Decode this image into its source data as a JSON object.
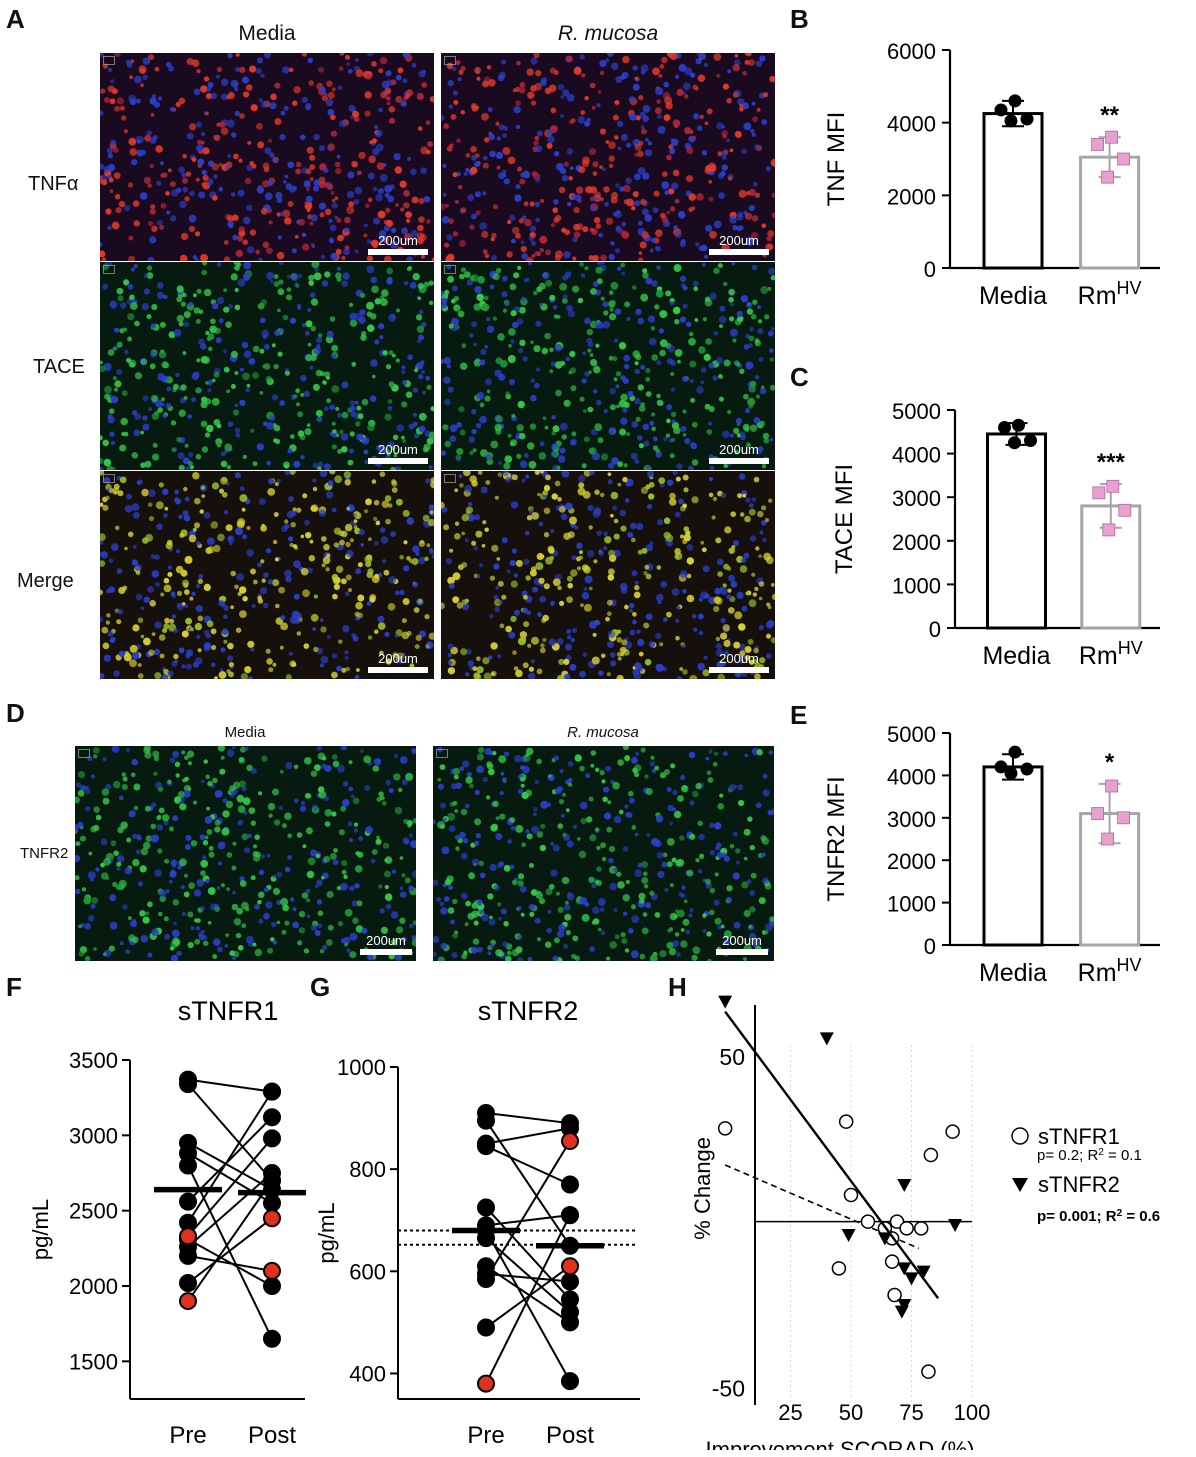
{
  "panels": {
    "A": "A",
    "B": "B",
    "C": "C",
    "D": "D",
    "E": "E",
    "F": "F",
    "G": "G",
    "H": "H"
  },
  "micro_A": {
    "col_media": "Media",
    "col_rm": "R. mucosa",
    "rows": [
      "TNFα",
      "TACE",
      "Merge"
    ],
    "scale_label": "200um"
  },
  "micro_D": {
    "col_media": "Media",
    "col_rm": "R. mucosa",
    "row": "TNFR2",
    "scale_label": "200um"
  },
  "colors": {
    "media_bar": "#000000",
    "rm_bar": "#a6a6a6",
    "rm_marker": "#e8a0cf",
    "red_point": "#e0301e"
  },
  "chart_data": [
    {
      "id": "B",
      "type": "bar",
      "ylabel": "TNF MFI",
      "categories": [
        "Media",
        "Rm"
      ],
      "cat_sup": [
        "",
        "HV"
      ],
      "values": [
        4250,
        3050
      ],
      "errors": [
        350,
        550
      ],
      "points": [
        [
          4600,
          4350,
          4100,
          4050
        ],
        [
          3600,
          3400,
          3000,
          2500
        ]
      ],
      "sig": [
        "",
        "**"
      ],
      "yticks": [
        0,
        2000,
        4000,
        6000
      ],
      "ylim": [
        0,
        6000
      ]
    },
    {
      "id": "C",
      "type": "bar",
      "ylabel": "TACE MFI",
      "categories": [
        "Media",
        "Rm"
      ],
      "cat_sup": [
        "",
        "HV"
      ],
      "values": [
        4450,
        2800
      ],
      "errors": [
        250,
        500
      ],
      "points": [
        [
          4650,
          4600,
          4300,
          4250
        ],
        [
          3250,
          3100,
          2700,
          2250
        ]
      ],
      "sig": [
        "",
        "***"
      ],
      "yticks": [
        0,
        1000,
        2000,
        3000,
        4000,
        5000
      ],
      "ylim": [
        0,
        5000
      ]
    },
    {
      "id": "E",
      "type": "bar",
      "ylabel": "TNFR2 MFI",
      "categories": [
        "Media",
        "Rm"
      ],
      "cat_sup": [
        "",
        "HV"
      ],
      "values": [
        4200,
        3100
      ],
      "errors": [
        300,
        700
      ],
      "points": [
        [
          4550,
          4200,
          4150,
          4050
        ],
        [
          3750,
          3100,
          3000,
          2500
        ]
      ],
      "sig": [
        "",
        "*"
      ],
      "yticks": [
        0,
        1000,
        2000,
        3000,
        4000,
        5000
      ],
      "ylim": [
        0,
        5000
      ]
    },
    {
      "id": "F",
      "type": "line",
      "title": "sTNFR1",
      "ylabel": "pg/mL",
      "categories": [
        "Pre",
        "Post"
      ],
      "yticks": [
        1500,
        2000,
        2500,
        3000,
        3500
      ],
      "ylim": [
        1250,
        3500
      ],
      "median": [
        2640,
        2620
      ],
      "pairs": [
        [
          3370,
          3290,
          0,
          0
        ],
        [
          3340,
          2700,
          0,
          0
        ],
        [
          2950,
          2640,
          0,
          0
        ],
        [
          2880,
          2550,
          0,
          0
        ],
        [
          2800,
          1650,
          0,
          0
        ],
        [
          2560,
          3120,
          0,
          0
        ],
        [
          2420,
          3290,
          0,
          0
        ],
        [
          2310,
          2000,
          0,
          0
        ],
        [
          2260,
          2750,
          0,
          0
        ],
        [
          2200,
          2100,
          0,
          1
        ],
        [
          2020,
          2450,
          0,
          1
        ],
        [
          1900,
          2700,
          1,
          0
        ],
        [
          2330,
          2980,
          1,
          0
        ]
      ]
    },
    {
      "id": "G",
      "type": "line",
      "title": "sTNFR2",
      "ylabel": "pg/mL",
      "categories": [
        "Pre",
        "Post"
      ],
      "yticks": [
        400,
        600,
        800,
        1000
      ],
      "ylim": [
        350,
        1000
      ],
      "median": [
        680,
        650
      ],
      "dotted": [
        680,
        652
      ],
      "pairs": [
        [
          910,
          890,
          0,
          0
        ],
        [
          895,
          650,
          0,
          0
        ],
        [
          850,
          880,
          0,
          0
        ],
        [
          845,
          770,
          0,
          0
        ],
        [
          725,
          545,
          0,
          0
        ],
        [
          690,
          710,
          0,
          0
        ],
        [
          680,
          385,
          0,
          0
        ],
        [
          665,
          520,
          0,
          0
        ],
        [
          610,
          500,
          0,
          0
        ],
        [
          595,
          580,
          0,
          0
        ],
        [
          585,
          855,
          0,
          1
        ],
        [
          490,
          610,
          0,
          1
        ],
        [
          380,
          710,
          1,
          0
        ]
      ]
    },
    {
      "id": "H",
      "type": "scatter",
      "xlabel": "Improvement SCORAD (%)",
      "ylabel": "% Change",
      "xticks": [
        25,
        50,
        75,
        100
      ],
      "xlim": [
        0,
        100
      ],
      "yticks": [
        -50,
        50
      ],
      "ylim": [
        -55,
        65
      ],
      "series": [
        {
          "name": "sTNFR1",
          "marker": "circle",
          "stats": "p= 0.2; R",
          "stats_sup": "2",
          "stats_tail": " = 0.1",
          "points": [
            [
              -2,
              28
            ],
            [
              45,
              -14
            ],
            [
              50,
              8
            ],
            [
              48,
              30
            ],
            [
              57,
              0
            ],
            [
              64,
              -2
            ],
            [
              67,
              -5
            ],
            [
              69,
              0
            ],
            [
              67,
              -12
            ],
            [
              68,
              -22
            ],
            [
              73,
              -2
            ],
            [
              79,
              -2
            ],
            [
              83,
              20
            ],
            [
              92,
              27
            ],
            [
              82,
              -45
            ]
          ],
          "trend": [
            [
              -2,
              17
            ],
            [
              78,
              -8
            ]
          ],
          "dashed": true
        },
        {
          "name": "sTNFR2",
          "marker": "triangle",
          "stats": "p= 0.001; R",
          "stats_sup": "2",
          "stats_tail": " = 0.6",
          "points": [
            [
              -2,
              66
            ],
            [
              40,
              55
            ],
            [
              49,
              -4
            ],
            [
              64,
              -5
            ],
            [
              72,
              11
            ],
            [
              72,
              -14
            ],
            [
              75,
              -17
            ],
            [
              80,
              -15
            ],
            [
              72,
              -25
            ],
            [
              71,
              -27
            ],
            [
              93,
              -1
            ]
          ],
          "trend": [
            [
              -2,
              63
            ],
            [
              86,
              -23
            ]
          ],
          "dashed": false
        }
      ]
    }
  ]
}
